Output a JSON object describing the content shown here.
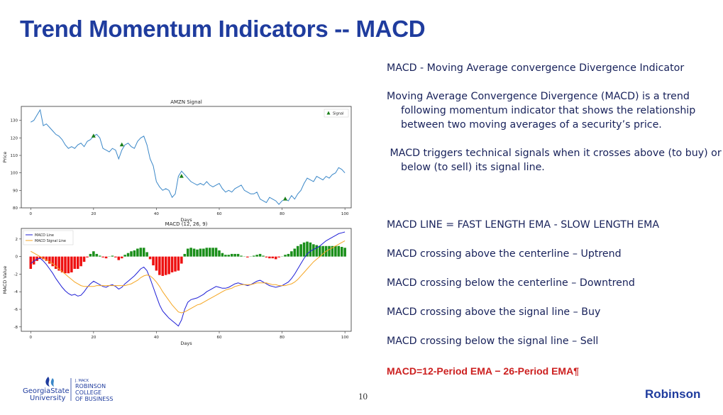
{
  "title": "Trend Momentum Indicators -- MACD",
  "text": {
    "heading": "MACD - Moving Average convergence Divergence Indicator",
    "definition_1": "Moving Average Convergence Divergence (MACD) is a trend",
    "definition_2": "following momentum indicator that shows the relationship",
    "definition_3": "between two moving averages of a security’s price.",
    "signal_1": " MACD triggers technical signals when it crosses above (to buy) or",
    "signal_2": "below (to sell) its signal line.",
    "line_formula": "MACD LINE = FAST LENGTH EMA - SLOW LENGTH EMA",
    "rule_1": "MACD crossing above the centerline – Uptrend",
    "rule_2": "MACD crossing below the centerline – Downtrend",
    "rule_3": "MACD crossing above the signal line – Buy",
    "rule_4": "MACD crossing below the signal line – Sell",
    "red_formula": "MACD=12-Period EMA − 26-Period EMA¶"
  },
  "footer": {
    "page_number": "10",
    "brand": "Robinson",
    "logo_line1": "GeorgiaState",
    "logo_line2": "University",
    "logo_small": "J. MACK",
    "logo_r1": "ROBINSON",
    "logo_r2": "COLLEGE",
    "logo_r3": "OF BUSINESS"
  },
  "colors": {
    "title": "#1f3c9e",
    "price_line": "#3a87c8",
    "signal_marker": "#1a7f1a",
    "macd_line": "#1f1fd6",
    "signal_line": "#f5a623",
    "hist_pos": "#1a8f1a",
    "hist_neg": "#ee1111",
    "formula": "#cc1f1f"
  },
  "chart_data": [
    {
      "type": "line",
      "title": "AMZN Signal",
      "xlabel": "Days",
      "ylabel": "Price",
      "xlim": [
        -3,
        102
      ],
      "ylim": [
        80,
        138
      ],
      "xticks": [
        0,
        20,
        40,
        60,
        80,
        100
      ],
      "yticks": [
        80,
        90,
        100,
        110,
        120,
        130
      ],
      "legend": "top-right",
      "legend_label": "Signal",
      "series": [
        {
          "values": [
            129,
            130,
            133,
            136,
            127,
            128,
            126,
            124,
            122,
            121,
            119,
            116,
            114,
            115,
            114,
            116,
            117,
            115,
            118,
            119,
            121,
            122,
            120,
            114,
            113,
            112,
            114,
            113,
            108,
            113,
            116,
            117,
            115,
            114,
            118,
            120,
            121,
            116,
            108,
            104,
            95,
            92,
            90,
            91,
            90,
            86,
            88,
            98,
            101,
            99,
            97,
            95,
            94,
            93,
            94,
            93,
            95,
            93,
            92,
            93,
            94,
            91,
            89,
            90,
            89,
            91,
            92,
            93,
            90,
            89,
            88,
            88,
            89,
            85,
            84,
            83,
            86,
            85,
            84,
            82,
            84,
            85,
            84,
            87,
            85,
            88,
            90,
            94,
            97,
            96,
            95,
            98,
            97,
            96,
            98,
            97,
            99,
            100,
            103,
            102,
            100
          ]
        }
      ],
      "markers": {
        "x": [
          20,
          29,
          48,
          81
        ],
        "y": [
          121,
          116,
          98,
          85
        ]
      }
    },
    {
      "type": "line",
      "title": "MACD (12, 26, 9)",
      "xlabel": "Days",
      "ylabel": "MACD Value",
      "xlim": [
        -3,
        102
      ],
      "ylim": [
        -8.5,
        3.2
      ],
      "xticks": [
        0,
        20,
        40,
        60,
        80,
        100
      ],
      "yticks": [
        -8,
        -6,
        -4,
        -2,
        0,
        2
      ],
      "legend": "top-left",
      "series": [
        {
          "name": "MACD Line",
          "values": [
            -0.8,
            -0.5,
            -0.3,
            -0.2,
            -0.5,
            -0.9,
            -1.4,
            -1.9,
            -2.5,
            -3.0,
            -3.5,
            -3.9,
            -4.2,
            -4.4,
            -4.3,
            -4.5,
            -4.4,
            -4.0,
            -3.5,
            -3.1,
            -2.8,
            -3.0,
            -3.2,
            -3.4,
            -3.5,
            -3.3,
            -3.2,
            -3.4,
            -3.7,
            -3.5,
            -3.1,
            -2.8,
            -2.5,
            -2.2,
            -1.8,
            -1.4,
            -1.2,
            -1.6,
            -2.5,
            -3.5,
            -4.5,
            -5.5,
            -6.2,
            -6.6,
            -7.0,
            -7.3,
            -7.6,
            -7.9,
            -7.2,
            -6.0,
            -5.2,
            -4.9,
            -4.8,
            -4.7,
            -4.5,
            -4.3,
            -4.0,
            -3.8,
            -3.6,
            -3.4,
            -3.5,
            -3.6,
            -3.6,
            -3.5,
            -3.3,
            -3.1,
            -3.0,
            -3.1,
            -3.2,
            -3.3,
            -3.2,
            -3.0,
            -2.8,
            -2.7,
            -2.9,
            -3.1,
            -3.3,
            -3.4,
            -3.5,
            -3.4,
            -3.3,
            -3.1,
            -2.9,
            -2.5,
            -2.0,
            -1.4,
            -0.8,
            -0.2,
            0.3,
            0.6,
            0.8,
            1.0,
            1.2,
            1.5,
            1.8,
            2.0,
            2.2,
            2.4,
            2.6,
            2.7,
            2.8
          ]
        },
        {
          "name": "MACD Signal Line",
          "values": [
            0.6,
            0.4,
            0.2,
            0.0,
            -0.2,
            -0.4,
            -0.6,
            -0.8,
            -1.1,
            -1.4,
            -1.7,
            -2.0,
            -2.3,
            -2.6,
            -2.9,
            -3.1,
            -3.3,
            -3.4,
            -3.4,
            -3.4,
            -3.4,
            -3.3,
            -3.3,
            -3.3,
            -3.3,
            -3.3,
            -3.3,
            -3.3,
            -3.3,
            -3.3,
            -3.3,
            -3.2,
            -3.1,
            -2.9,
            -2.7,
            -2.4,
            -2.2,
            -2.1,
            -2.2,
            -2.5,
            -2.9,
            -3.4,
            -4.0,
            -4.5,
            -5.0,
            -5.5,
            -5.9,
            -6.3,
            -6.4,
            -6.3,
            -6.1,
            -5.9,
            -5.7,
            -5.5,
            -5.4,
            -5.2,
            -5.0,
            -4.8,
            -4.6,
            -4.4,
            -4.2,
            -4.0,
            -3.8,
            -3.7,
            -3.6,
            -3.4,
            -3.3,
            -3.2,
            -3.2,
            -3.2,
            -3.2,
            -3.1,
            -3.0,
            -3.0,
            -3.0,
            -3.0,
            -3.1,
            -3.2,
            -3.2,
            -3.3,
            -3.3,
            -3.3,
            -3.2,
            -3.1,
            -2.9,
            -2.6,
            -2.2,
            -1.8,
            -1.4,
            -1.0,
            -0.6,
            -0.3,
            0.0,
            0.3,
            0.6,
            0.8,
            1.0,
            1.2,
            1.4,
            1.6,
            1.8
          ]
        }
      ]
    }
  ]
}
